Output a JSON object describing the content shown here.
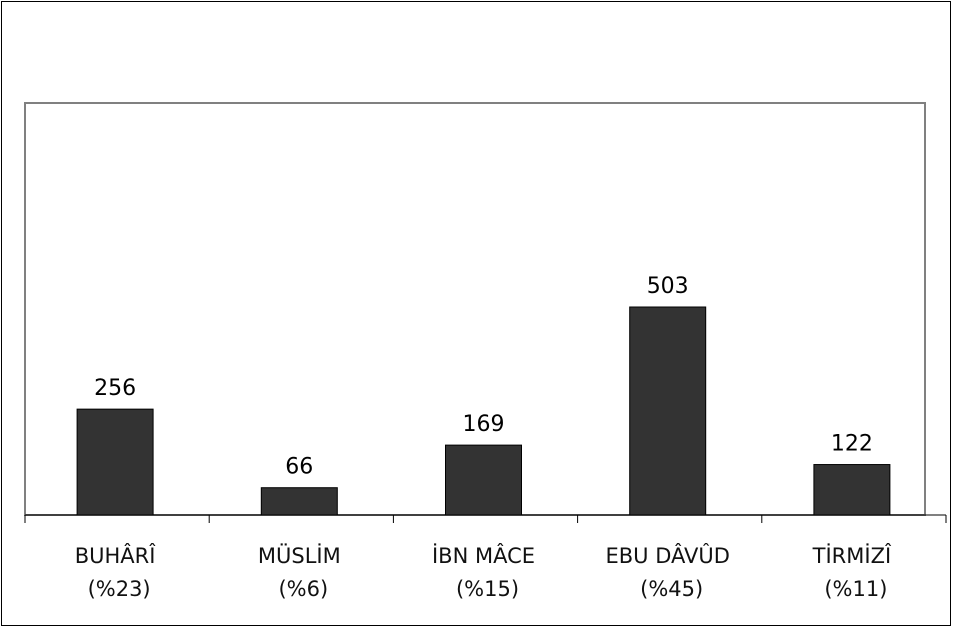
{
  "chart_data": {
    "type": "bar",
    "categories": [
      "BUHÂRÎ",
      "MÜSLİM",
      "İBN MÂCE",
      "EBU DÂVÛD",
      "TİRMİZÎ"
    ],
    "percent_labels": [
      "(%23)",
      "(%6)",
      "(%15)",
      "(%45)",
      "(%11)"
    ],
    "values": [
      256,
      66,
      169,
      503,
      122
    ],
    "data_labels": [
      "256",
      "66",
      "169",
      "503",
      "122"
    ],
    "title": "",
    "xlabel": "",
    "ylabel": "",
    "ylim": [
      0,
      785
    ],
    "grid": false,
    "legend": "none",
    "bar_color": "#333333",
    "plot_border_color": "#808080"
  }
}
